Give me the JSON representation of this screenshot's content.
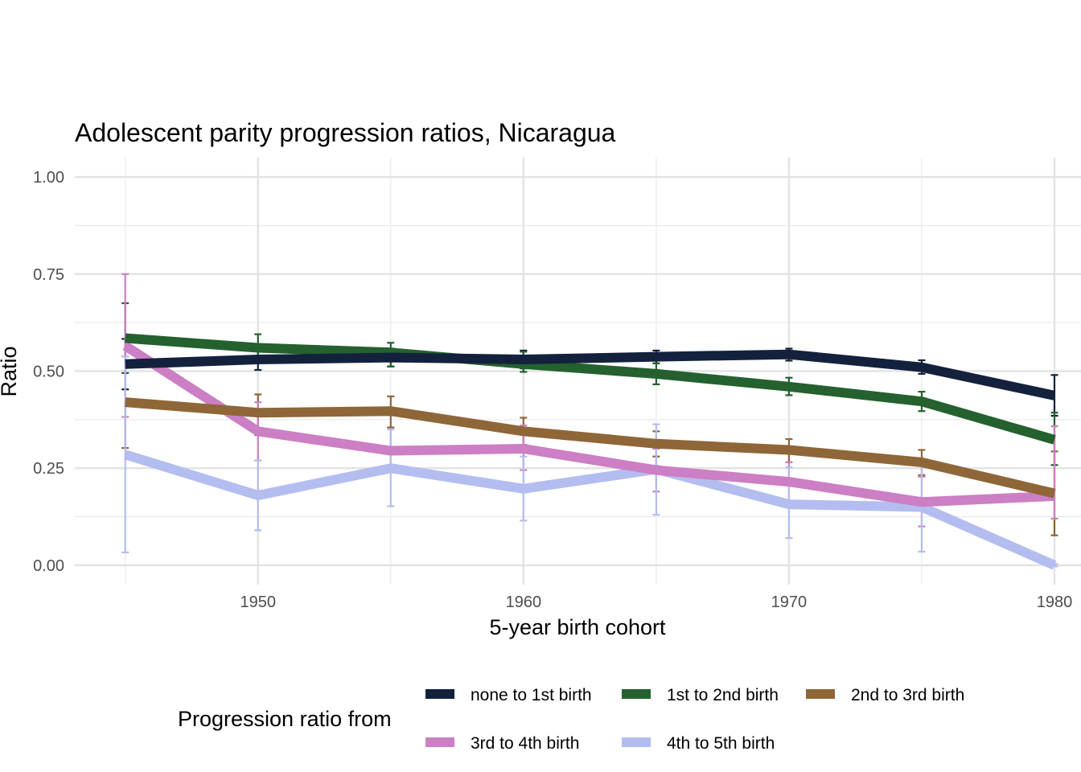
{
  "chart_data": {
    "type": "line",
    "title": "Adolescent parity progression ratios,  Nicaragua",
    "xlabel": "5-year birth cohort",
    "ylabel": "Ratio",
    "x": [
      1945,
      1950,
      1955,
      1960,
      1965,
      1970,
      1975,
      1980
    ],
    "xlim": [
      1943.1,
      1981
    ],
    "ylim": [
      -0.05,
      1.05
    ],
    "x_ticks": [
      1950,
      1960,
      1970,
      1980
    ],
    "x_tick_labels": [
      "1950",
      "1960",
      "1970",
      "1980"
    ],
    "y_ticks": [
      0,
      0.25,
      0.5,
      0.75,
      1.0
    ],
    "y_tick_labels": [
      "0.00",
      "0.25",
      "0.50",
      "0.75",
      "1.00"
    ],
    "grid": true,
    "legend_title": "Progression ratio from",
    "legend_position": "bottom",
    "series": [
      {
        "name": "none to 1st birth",
        "color": "#14213d",
        "values": [
          0.518,
          0.53,
          0.535,
          0.53,
          0.537,
          0.543,
          0.51,
          0.437
        ],
        "lower": [
          0.453,
          0.503,
          0.512,
          0.507,
          0.52,
          0.527,
          0.493,
          0.385
        ],
        "upper": [
          0.583,
          0.555,
          0.558,
          0.553,
          0.553,
          0.558,
          0.528,
          0.49
        ]
      },
      {
        "name": "1st to 2nd birth",
        "color": "#24612f",
        "values": [
          0.585,
          0.56,
          0.548,
          0.518,
          0.493,
          0.46,
          0.422,
          0.323
        ],
        "lower": [
          0.495,
          0.525,
          0.512,
          0.498,
          0.466,
          0.438,
          0.397,
          0.258
        ],
        "upper": [
          0.675,
          0.595,
          0.573,
          0.55,
          0.52,
          0.483,
          0.447,
          0.393
        ]
      },
      {
        "name": "2nd to 3rd birth",
        "color": "#8f6637",
        "values": [
          0.42,
          0.393,
          0.397,
          0.345,
          0.313,
          0.297,
          0.265,
          0.185
        ],
        "lower": [
          0.302,
          0.335,
          0.355,
          0.31,
          0.28,
          0.265,
          0.232,
          0.077
        ],
        "upper": [
          0.538,
          0.44,
          0.435,
          0.38,
          0.345,
          0.325,
          0.297,
          0.293
        ]
      },
      {
        "name": "3rd to 4th birth",
        "color": "#cc7fc4",
        "values": [
          0.565,
          0.345,
          0.295,
          0.3,
          0.245,
          0.215,
          0.163,
          0.178
        ],
        "lower": [
          0.382,
          0.27,
          0.24,
          0.245,
          0.19,
          0.165,
          0.1,
          0.12
        ],
        "upper": [
          0.75,
          0.42,
          0.35,
          0.36,
          0.3,
          0.265,
          0.228,
          0.358
        ]
      },
      {
        "name": "4th to 5th birth",
        "color": "#b3bdf0",
        "values": [
          0.285,
          0.18,
          0.25,
          0.197,
          0.247,
          0.157,
          0.15,
          0.0
        ],
        "lower": [
          0.033,
          0.09,
          0.152,
          0.115,
          0.13,
          0.07,
          0.035,
          -0.003
        ],
        "upper": [
          0.538,
          0.27,
          0.35,
          0.28,
          0.363,
          0.252,
          0.268,
          0.003
        ]
      }
    ]
  }
}
